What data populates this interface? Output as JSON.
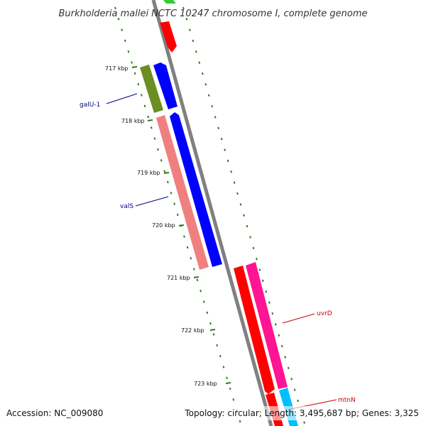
{
  "title": "Burkholderia mallei NCTC 10247 chromosome I, complete genome",
  "footer": {
    "accession": "Accession: NC_009080",
    "summary": "Topology: circular; Length: 3,495,687 bp; Genes: 3,325"
  },
  "ticks": [
    "717 kbp",
    "718 kbp",
    "719 kbp",
    "720 kbp",
    "721 kbp",
    "722 kbp",
    "723 kbp"
  ],
  "gene_labels": [
    {
      "name": "galU-1",
      "color": "#00008b"
    },
    {
      "name": "valS",
      "color": "#00008b"
    },
    {
      "name": "uvrD",
      "color": "#cc0000"
    },
    {
      "name": "mtnN",
      "color": "#cc0000"
    }
  ],
  "colors": {
    "backbone": "#808080",
    "tick_dots": "#2e7d1e",
    "forward_cds": "#0000ff",
    "forward_gene": "#ff0000",
    "gene_olive": "#6b8e23",
    "gene_salmon": "#f08080",
    "gene_pink": "#ff1493",
    "gene_cyan": "#00bfff",
    "gene_green": "#33cc33"
  }
}
